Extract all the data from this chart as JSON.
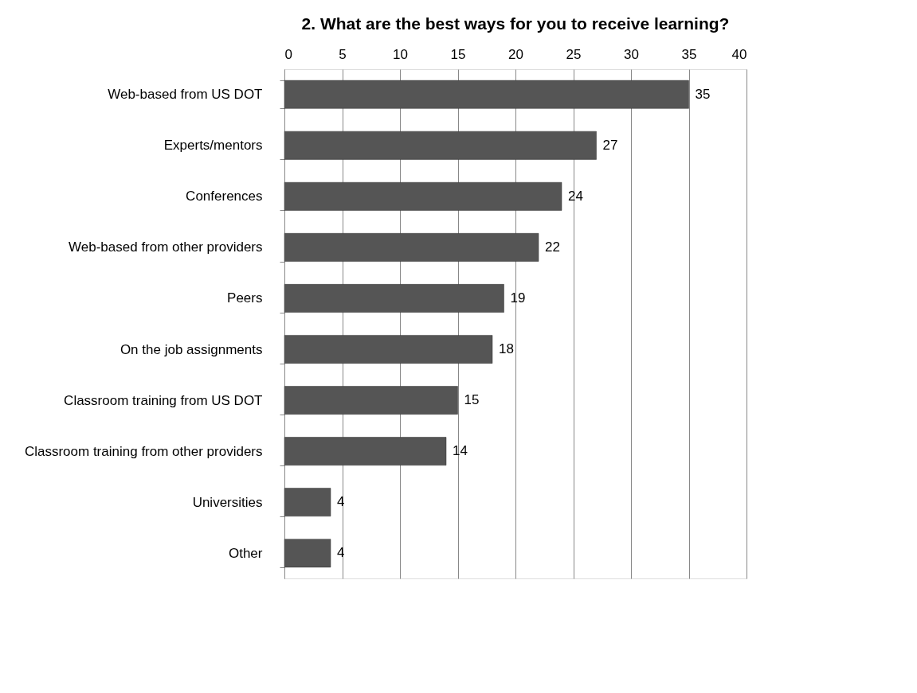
{
  "chart_data": {
    "type": "bar",
    "orientation": "horizontal",
    "title": "2.  What are the best ways for you to receive learning?",
    "categories": [
      "Web-based from US DOT",
      "Experts/mentors",
      "Conferences",
      "Web-based from other providers",
      "Peers",
      "On the job assignments",
      "Classroom training  from US DOT",
      "Classroom training from other providers",
      "Universities",
      "Other"
    ],
    "values": [
      35,
      27,
      24,
      22,
      19,
      18,
      15,
      14,
      4,
      4
    ],
    "color": "#555555",
    "xlim": [
      0,
      40
    ],
    "xticks": [
      0,
      5,
      10,
      15,
      20,
      25,
      30,
      35,
      40
    ],
    "grid": "x",
    "data_labels": true
  }
}
